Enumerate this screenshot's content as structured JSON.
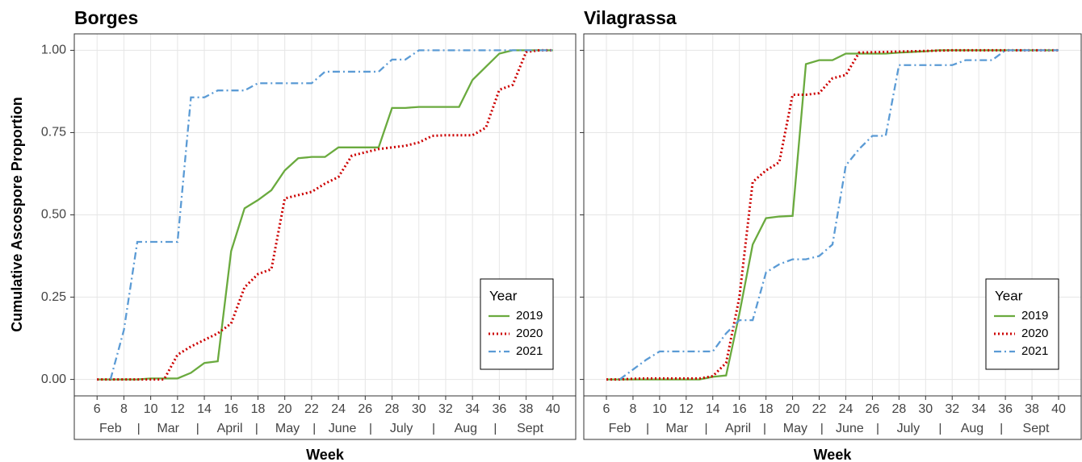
{
  "chart_data": [
    {
      "type": "line",
      "title": "Borges",
      "x_label": "Week",
      "y_label": "Cumulative Ascospore Proportion",
      "x": [
        6,
        7,
        8,
        9,
        10,
        11,
        12,
        13,
        14,
        15,
        16,
        17,
        18,
        19,
        20,
        21,
        22,
        23,
        24,
        25,
        26,
        27,
        28,
        29,
        30,
        31,
        32,
        33,
        34,
        35,
        36,
        37,
        38,
        39,
        40
      ],
      "xlim": [
        4.3,
        41.7
      ],
      "xticks": [
        6,
        8,
        10,
        12,
        14,
        16,
        18,
        20,
        22,
        24,
        26,
        28,
        30,
        32,
        34,
        36,
        38,
        40
      ],
      "ylim": [
        -0.05,
        1.05
      ],
      "yticks": [
        {
          "value": 0,
          "label": "0.00"
        },
        {
          "value": 0.25,
          "label": "0.25"
        },
        {
          "value": 0.5,
          "label": "0.50"
        },
        {
          "value": 0.75,
          "label": "0.75"
        },
        {
          "value": 1,
          "label": "1.00"
        }
      ],
      "months": [
        "Feb",
        "Mar",
        "April",
        "May",
        "June",
        "July",
        "Aug",
        "Sept"
      ],
      "grid": true,
      "legend_title": "Year",
      "legend_position": "bottom-right",
      "series": [
        {
          "name": "2019",
          "color": "#6aaa3e",
          "linestyle": "solid",
          "values": [
            0,
            0,
            0,
            0,
            0.003,
            0.003,
            0.003,
            0.02,
            0.05,
            0.055,
            0.39,
            0.52,
            0.545,
            0.575,
            0.635,
            0.672,
            0.676,
            0.676,
            0.705,
            0.705,
            0.705,
            0.705,
            0.825,
            0.825,
            0.828,
            0.828,
            0.828,
            0.828,
            0.91,
            0.95,
            0.99,
            1,
            1,
            1,
            1
          ]
        },
        {
          "name": "2020",
          "color": "#cc0000",
          "linestyle": "dotted",
          "values": [
            0,
            0,
            0,
            0,
            0,
            0,
            0.075,
            0.1,
            0.12,
            0.14,
            0.17,
            0.28,
            0.32,
            0.335,
            0.55,
            0.56,
            0.57,
            0.595,
            0.615,
            0.68,
            0.69,
            0.7,
            0.705,
            0.71,
            0.72,
            0.74,
            0.742,
            0.742,
            0.742,
            0.765,
            0.88,
            0.895,
            0.995,
            1,
            1
          ]
        },
        {
          "name": "2021",
          "color": "#5b9bd5",
          "linestyle": "dashdot",
          "values": [
            null,
            0,
            0.15,
            0.418,
            0.418,
            0.418,
            0.418,
            0.857,
            0.857,
            0.878,
            0.878,
            0.878,
            0.9,
            0.9,
            0.9,
            0.9,
            0.9,
            0.935,
            0.935,
            0.935,
            0.935,
            0.935,
            0.972,
            0.972,
            1,
            1,
            1,
            1,
            1,
            1,
            1,
            1,
            1,
            1,
            1
          ]
        }
      ]
    },
    {
      "type": "line",
      "title": "Vilagrassa",
      "x_label": "Week",
      "x": [
        6,
        7,
        8,
        9,
        10,
        11,
        12,
        13,
        14,
        15,
        16,
        17,
        18,
        19,
        20,
        21,
        22,
        23,
        24,
        25,
        26,
        27,
        28,
        29,
        30,
        31,
        32,
        33,
        34,
        35,
        36,
        37,
        38,
        39,
        40
      ],
      "xlim": [
        4.3,
        41.7
      ],
      "xticks": [
        6,
        8,
        10,
        12,
        14,
        16,
        18,
        20,
        22,
        24,
        26,
        28,
        30,
        32,
        34,
        36,
        38,
        40
      ],
      "ylim": [
        -0.05,
        1.05
      ],
      "yticks": [
        0,
        0.25,
        0.5,
        0.75,
        1
      ],
      "months": [
        "Feb",
        "Mar",
        "April",
        "May",
        "June",
        "July",
        "Aug",
        "Sept"
      ],
      "grid": true,
      "legend_title": "Year",
      "legend_position": "bottom-right",
      "series": [
        {
          "name": "2019",
          "color": "#6aaa3e",
          "linestyle": "solid",
          "values": [
            0,
            0,
            0,
            0,
            0,
            0,
            0,
            0,
            0.008,
            0.012,
            0.2,
            0.41,
            0.49,
            0.495,
            0.497,
            0.958,
            0.97,
            0.97,
            0.99,
            0.99,
            0.99,
            0.99,
            0.993,
            0.995,
            0.997,
            1,
            1,
            1,
            1,
            1,
            1,
            1,
            1,
            1,
            1
          ]
        },
        {
          "name": "2020",
          "color": "#cc0000",
          "linestyle": "dotted",
          "values": [
            0,
            0,
            0.002,
            0.003,
            0.003,
            0.003,
            0.003,
            0.003,
            0.01,
            0.05,
            0.25,
            0.6,
            0.635,
            0.66,
            0.865,
            0.865,
            0.87,
            0.915,
            0.925,
            0.993,
            0.994,
            0.995,
            0.996,
            0.997,
            0.998,
            0.999,
            1,
            1,
            1,
            1,
            1,
            1,
            1,
            1,
            1
          ]
        },
        {
          "name": "2021",
          "color": "#5b9bd5",
          "linestyle": "dashdot",
          "values": [
            null,
            0,
            0.03,
            0.06,
            0.085,
            0.085,
            0.085,
            0.085,
            0.085,
            0.14,
            0.18,
            0.18,
            0.325,
            0.35,
            0.365,
            0.365,
            0.375,
            0.41,
            0.65,
            0.7,
            0.74,
            0.74,
            0.955,
            0.955,
            0.955,
            0.955,
            0.955,
            0.97,
            0.97,
            0.97,
            1,
            1,
            1,
            1,
            1
          ]
        }
      ]
    }
  ]
}
